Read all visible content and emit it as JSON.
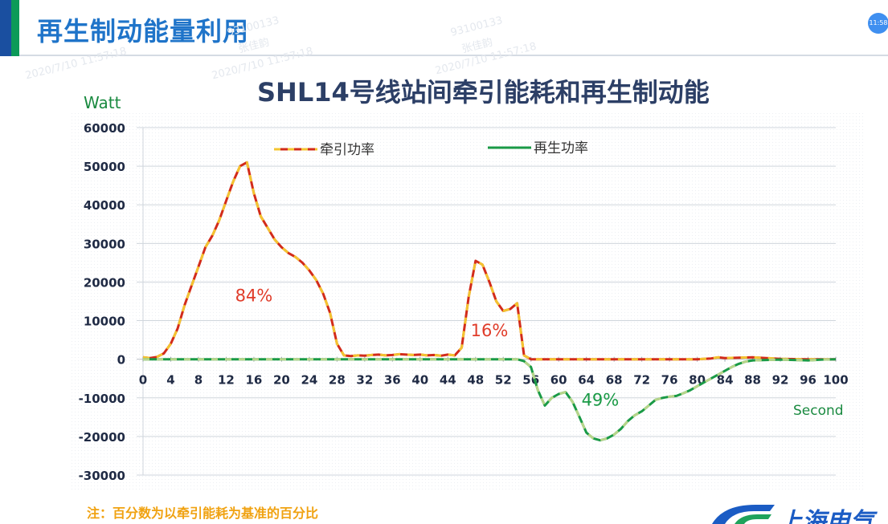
{
  "slide": {
    "title": "再生制动能量利用",
    "clock": "11:58",
    "watermarks": [
      "93100133",
      "张佳韵",
      "2020/7/10 11:57:18"
    ],
    "note": "注：百分数为以牵引能耗为基准的百分比",
    "logo_text": "上海电气"
  },
  "colors": {
    "title_blue": "#1f74c9",
    "chart_title": "#2c3f66",
    "traction_primary": "#d22b1a",
    "traction_dash": "#f4c430",
    "regen_primary": "#1a9a46",
    "regen_dash": "#b7d58a",
    "pct_red": "#e03c2a",
    "pct_green": "#1a9a46",
    "axis_label_green": "#1a8a40",
    "note_orange": "#f0a211"
  },
  "chart_data": {
    "type": "line",
    "title": "SHL14号线站间牵引能耗和再生制动能",
    "ylabel": "Watt",
    "xlabel": "Second",
    "ylim": [
      -30000,
      60000
    ],
    "xlim": [
      0,
      100
    ],
    "yticks": [
      60000,
      50000,
      40000,
      30000,
      20000,
      10000,
      0,
      -10000,
      -20000,
      -30000
    ],
    "xticks": [
      0,
      4,
      8,
      12,
      16,
      20,
      24,
      28,
      32,
      36,
      40,
      44,
      48,
      52,
      56,
      60,
      64,
      68,
      72,
      76,
      80,
      84,
      88,
      92,
      96,
      100
    ],
    "grid": true,
    "legend": "top",
    "series": [
      {
        "name": "牵引功率",
        "color": "#d22b1a",
        "points": [
          [
            0,
            500
          ],
          [
            1,
            300
          ],
          [
            2,
            600
          ],
          [
            3,
            1500
          ],
          [
            4,
            4000
          ],
          [
            5,
            8000
          ],
          [
            6,
            14000
          ],
          [
            7,
            19000
          ],
          [
            8,
            24000
          ],
          [
            9,
            29000
          ],
          [
            10,
            32000
          ],
          [
            11,
            36000
          ],
          [
            12,
            41000
          ],
          [
            13,
            46000
          ],
          [
            14,
            50000
          ],
          [
            15,
            51000
          ],
          [
            16,
            43000
          ],
          [
            17,
            37000
          ],
          [
            18,
            34000
          ],
          [
            19,
            31000
          ],
          [
            20,
            29000
          ],
          [
            21,
            27500
          ],
          [
            22,
            26500
          ],
          [
            23,
            25000
          ],
          [
            24,
            23000
          ],
          [
            25,
            20500
          ],
          [
            26,
            17000
          ],
          [
            27,
            12000
          ],
          [
            28,
            4000
          ],
          [
            29,
            1000
          ],
          [
            30,
            800
          ],
          [
            31,
            1000
          ],
          [
            32,
            900
          ],
          [
            33,
            1100
          ],
          [
            34,
            1200
          ],
          [
            35,
            1000
          ],
          [
            36,
            1100
          ],
          [
            37,
            1300
          ],
          [
            38,
            1200
          ],
          [
            39,
            1100
          ],
          [
            40,
            1200
          ],
          [
            41,
            1000
          ],
          [
            42,
            1100
          ],
          [
            43,
            900
          ],
          [
            44,
            1200
          ],
          [
            45,
            1000
          ],
          [
            46,
            3000
          ],
          [
            47,
            16000
          ],
          [
            48,
            25500
          ],
          [
            49,
            24500
          ],
          [
            50,
            20000
          ],
          [
            51,
            15000
          ],
          [
            52,
            12500
          ],
          [
            53,
            13000
          ],
          [
            54,
            14500
          ],
          [
            55,
            1000
          ],
          [
            56,
            0
          ],
          [
            60,
            0
          ],
          [
            70,
            0
          ],
          [
            80,
            0
          ],
          [
            82,
            200
          ],
          [
            83,
            500
          ],
          [
            84,
            300
          ],
          [
            86,
            400
          ],
          [
            88,
            500
          ],
          [
            90,
            300
          ],
          [
            92,
            100
          ],
          [
            96,
            0
          ],
          [
            100,
            0
          ]
        ]
      },
      {
        "name": "再生功率",
        "color": "#1a9a46",
        "points": [
          [
            0,
            0
          ],
          [
            54,
            0
          ],
          [
            55,
            -500
          ],
          [
            56,
            -2000
          ],
          [
            57,
            -8000
          ],
          [
            58,
            -12000
          ],
          [
            59,
            -10000
          ],
          [
            60,
            -9000
          ],
          [
            61,
            -8500
          ],
          [
            62,
            -11000
          ],
          [
            63,
            -15000
          ],
          [
            64,
            -19000
          ],
          [
            65,
            -20500
          ],
          [
            66,
            -21000
          ],
          [
            67,
            -20500
          ],
          [
            68,
            -19500
          ],
          [
            69,
            -18000
          ],
          [
            70,
            -16000
          ],
          [
            71,
            -14500
          ],
          [
            72,
            -13500
          ],
          [
            73,
            -12000
          ],
          [
            74,
            -10500
          ],
          [
            75,
            -10000
          ],
          [
            76,
            -9700
          ],
          [
            77,
            -9500
          ],
          [
            78,
            -8800
          ],
          [
            79,
            -8000
          ],
          [
            80,
            -7000
          ],
          [
            81,
            -6000
          ],
          [
            82,
            -5000
          ],
          [
            83,
            -4000
          ],
          [
            84,
            -3000
          ],
          [
            85,
            -2000
          ],
          [
            86,
            -1200
          ],
          [
            87,
            -600
          ],
          [
            88,
            -300
          ],
          [
            90,
            -200
          ],
          [
            92,
            -100
          ],
          [
            94,
            -200
          ],
          [
            96,
            -300
          ],
          [
            98,
            -100
          ],
          [
            100,
            0
          ]
        ]
      }
    ],
    "annotations": [
      {
        "text": "84%",
        "x": 16,
        "y": 15000,
        "color": "#e03c2a"
      },
      {
        "text": "16%",
        "x": 50,
        "y": 6000,
        "color": "#e03c2a"
      },
      {
        "text": "49%",
        "x": 66,
        "y": -12000,
        "color": "#1a9a46"
      }
    ]
  }
}
